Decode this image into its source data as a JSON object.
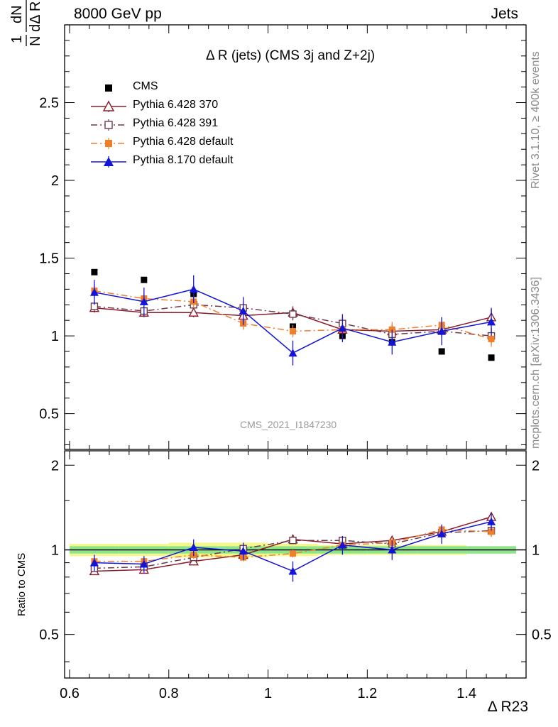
{
  "header": {
    "left": "8000 GeV pp",
    "right": "Jets"
  },
  "side_text": {
    "rivet": "Rivet 3.1.10, ≥ 400k events",
    "mcplots": "mcplots.cern.ch [arXiv:1306.3436]"
  },
  "chart_data": [
    {
      "type": "scatter",
      "title": "Δ R (jets) (CMS 3j and Z+2j)",
      "analysis": "CMS_2021_I1847230",
      "ylabel": "1/N dN/dΔ R23",
      "xlabel": "Δ R23",
      "xlim": [
        0.59,
        1.52
      ],
      "ylim": [
        0.27,
        3.0
      ],
      "xticks": [
        0.6,
        0.8,
        1,
        1.2,
        1.4
      ],
      "xtick_labels": [
        "0.6",
        "0.8",
        "1",
        "1.2",
        "1.4"
      ],
      "yticks": [
        0.5,
        1,
        1.5,
        2,
        2.5
      ],
      "ytick_labels": [
        "0.5",
        "1",
        "1.5",
        "2",
        "2.5"
      ],
      "legend_position": "top-left",
      "x": [
        0.65,
        0.75,
        0.85,
        0.95,
        1.05,
        1.15,
        1.25,
        1.35,
        1.45
      ],
      "series": [
        {
          "name": "CMS",
          "color": "#000000",
          "marker": "filled-square",
          "line": "none",
          "values": [
            1.41,
            1.36,
            1.27,
            1.18,
            1.06,
            1.0,
            0.96,
            0.9,
            0.86
          ]
        },
        {
          "name": "Pythia 6.428 370",
          "color": "#8b1a2b",
          "marker": "open-triangle",
          "line": "solid",
          "values": [
            1.18,
            1.15,
            1.15,
            1.13,
            1.15,
            1.04,
            1.03,
            1.04,
            1.12
          ],
          "errors": [
            0.03,
            0.03,
            0.03,
            0.03,
            0.04,
            0.04,
            0.04,
            0.04,
            0.05
          ]
        },
        {
          "name": "Pythia 6.428 391",
          "color": "#6b3a4a",
          "marker": "open-square",
          "line": "dashdot",
          "values": [
            1.19,
            1.16,
            1.2,
            1.18,
            1.14,
            1.08,
            1.01,
            1.03,
            1.0
          ],
          "errors": [
            0.03,
            0.03,
            0.03,
            0.03,
            0.04,
            0.04,
            0.04,
            0.04,
            0.05
          ]
        },
        {
          "name": "Pythia 6.428 default",
          "color": "#f07f2c",
          "marker": "filled-square",
          "line": "dashdot",
          "values": [
            1.29,
            1.24,
            1.22,
            1.08,
            1.03,
            1.04,
            1.04,
            1.07,
            0.98
          ],
          "errors": [
            0.04,
            0.04,
            0.04,
            0.04,
            0.04,
            0.05,
            0.05,
            0.05,
            0.05
          ]
        },
        {
          "name": "Pythia 8.170 default",
          "color": "#1414d8",
          "marker": "filled-triangle",
          "line": "solid",
          "values": [
            1.28,
            1.22,
            1.3,
            1.16,
            0.89,
            1.05,
            0.96,
            1.03,
            1.09
          ],
          "errors": [
            0.08,
            0.09,
            0.09,
            0.09,
            0.08,
            0.09,
            0.08,
            0.09,
            0.09
          ]
        }
      ]
    },
    {
      "type": "scatter",
      "title": "",
      "ylabel": "Ratio to CMS",
      "xlabel": "Δ R23",
      "xlim": [
        0.59,
        1.52
      ],
      "ylim": [
        0.35,
        2.25
      ],
      "yscale": "log",
      "yticks": [
        0.5,
        1,
        2
      ],
      "ytick_labels": [
        "0.5",
        "1",
        "2"
      ],
      "x": [
        0.65,
        0.75,
        0.85,
        0.95,
        1.05,
        1.15,
        1.25,
        1.35,
        1.45
      ],
      "reference_band": {
        "green_halfwidth": [
          0.03,
          0.03,
          0.03,
          0.03,
          0.03,
          0.03,
          0.03,
          0.03,
          0.03
        ],
        "yellow_halfwidth": [
          0.05,
          0.05,
          0.06,
          0.06,
          0.05,
          0.04,
          0.04,
          0.04,
          0.03
        ],
        "green_color": "#8ce58a",
        "yellow_color": "#f6f68a"
      },
      "series": [
        {
          "name": "Pythia 6.428 370",
          "color": "#8b1a2b",
          "marker": "open-triangle",
          "line": "solid",
          "values": [
            0.84,
            0.85,
            0.91,
            0.96,
            1.09,
            1.05,
            1.08,
            1.16,
            1.31
          ],
          "errors": [
            0.02,
            0.02,
            0.02,
            0.03,
            0.03,
            0.04,
            0.04,
            0.04,
            0.05
          ]
        },
        {
          "name": "Pythia 6.428 391",
          "color": "#6b3a4a",
          "marker": "open-square",
          "line": "dashdot",
          "values": [
            0.86,
            0.87,
            0.94,
            1.01,
            1.08,
            1.08,
            1.05,
            1.15,
            1.17
          ],
          "errors": [
            0.02,
            0.02,
            0.02,
            0.03,
            0.03,
            0.04,
            0.04,
            0.04,
            0.05
          ]
        },
        {
          "name": "Pythia 6.428 default",
          "color": "#f07f2c",
          "marker": "filled-square",
          "line": "dashdot",
          "values": [
            0.91,
            0.91,
            0.96,
            0.94,
            0.97,
            1.04,
            1.06,
            1.18,
            1.16
          ],
          "errors": [
            0.03,
            0.03,
            0.03,
            0.03,
            0.03,
            0.04,
            0.04,
            0.05,
            0.05
          ]
        },
        {
          "name": "Pythia 8.170 default",
          "color": "#1414d8",
          "marker": "filled-triangle",
          "line": "solid",
          "values": [
            0.9,
            0.89,
            1.02,
            0.99,
            0.84,
            1.04,
            1.0,
            1.14,
            1.26
          ],
          "errors": [
            0.06,
            0.06,
            0.07,
            0.07,
            0.07,
            0.08,
            0.08,
            0.09,
            0.09
          ]
        }
      ]
    }
  ]
}
